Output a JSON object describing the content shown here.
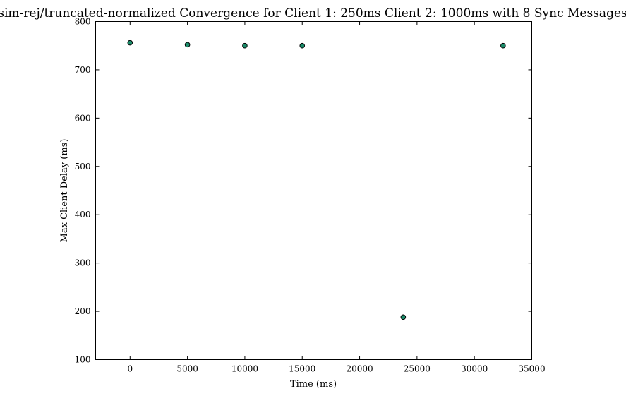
{
  "chart_data": {
    "type": "scatter",
    "title": "sim-rej/truncated-normalized Convergence for Client 1: 250ms Client 2: 1000ms with 8 Sync Messages",
    "xlabel": "Time (ms)",
    "ylabel": "Max Client Delay (ms)",
    "xlim": [
      -3000,
      35000
    ],
    "ylim": [
      100,
      800
    ],
    "xticks": [
      0,
      5000,
      10000,
      15000,
      20000,
      25000,
      30000,
      35000
    ],
    "yticks": [
      100,
      200,
      300,
      400,
      500,
      600,
      700,
      800
    ],
    "grid": false,
    "marker_color": "#1a8c6a",
    "points": [
      {
        "x": 0,
        "y": 756
      },
      {
        "x": 5000,
        "y": 752
      },
      {
        "x": 10000,
        "y": 750
      },
      {
        "x": 15000,
        "y": 750
      },
      {
        "x": 23800,
        "y": 188
      },
      {
        "x": 32500,
        "y": 750
      }
    ]
  }
}
